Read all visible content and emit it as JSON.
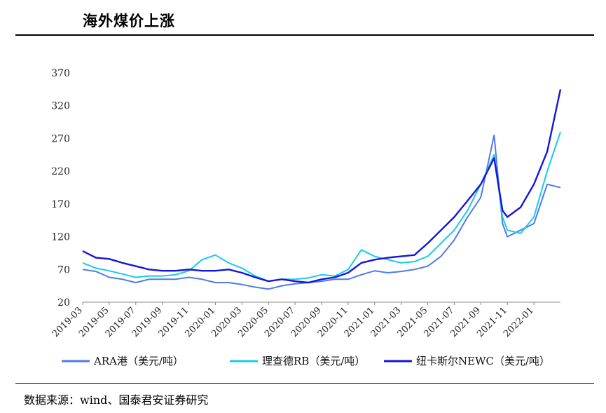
{
  "header": {
    "title": "海外煤价上涨"
  },
  "footer": {
    "source": "数据来源：wind、国泰君安证券研究"
  },
  "chart_data": {
    "type": "line",
    "ylim": [
      20,
      370
    ],
    "yticks": [
      20,
      70,
      120,
      170,
      220,
      270,
      320,
      370
    ],
    "xlabels": [
      "2019-03",
      "2019-05",
      "2019-07",
      "2019-09",
      "2019-11",
      "2020-01",
      "2020-03",
      "2020-05",
      "2020-07",
      "2020-09",
      "2020-11",
      "2021-01",
      "2021-03",
      "2021-05",
      "2021-07",
      "2021-09",
      "2021-11",
      "2022-01"
    ],
    "x_start": "2019-03",
    "x_end": "2022-03",
    "grid": false,
    "legend_position": "bottom",
    "series": [
      {
        "name": "ARA港（美元/吨）",
        "color": "#4F7BE8",
        "points": [
          [
            "2019-03",
            70
          ],
          [
            "2019-04",
            67
          ],
          [
            "2019-05",
            58
          ],
          [
            "2019-06",
            55
          ],
          [
            "2019-07",
            50
          ],
          [
            "2019-08",
            55
          ],
          [
            "2019-09",
            55
          ],
          [
            "2019-10",
            55
          ],
          [
            "2019-11",
            58
          ],
          [
            "2019-12",
            55
          ],
          [
            "2020-01",
            50
          ],
          [
            "2020-02",
            50
          ],
          [
            "2020-03",
            47
          ],
          [
            "2020-04",
            43
          ],
          [
            "2020-05",
            40
          ],
          [
            "2020-06",
            45
          ],
          [
            "2020-07",
            48
          ],
          [
            "2020-08",
            50
          ],
          [
            "2020-09",
            52
          ],
          [
            "2020-10",
            55
          ],
          [
            "2020-11",
            55
          ],
          [
            "2020-12",
            62
          ],
          [
            "2021-01",
            68
          ],
          [
            "2021-02",
            65
          ],
          [
            "2021-03",
            67
          ],
          [
            "2021-04",
            70
          ],
          [
            "2021-05",
            75
          ],
          [
            "2021-06",
            90
          ],
          [
            "2021-07",
            115
          ],
          [
            "2021-08",
            150
          ],
          [
            "2021-09",
            180
          ],
          [
            "2021-10",
            275
          ],
          [
            "2021-10-20",
            140
          ],
          [
            "2021-11",
            120
          ],
          [
            "2021-12",
            130
          ],
          [
            "2022-01",
            140
          ],
          [
            "2022-02",
            200
          ],
          [
            "2022-03",
            195
          ]
        ]
      },
      {
        "name": "理查德RB（美元/吨）",
        "color": "#18CBEB",
        "points": [
          [
            "2019-03",
            80
          ],
          [
            "2019-04",
            72
          ],
          [
            "2019-05",
            68
          ],
          [
            "2019-06",
            63
          ],
          [
            "2019-07",
            58
          ],
          [
            "2019-08",
            60
          ],
          [
            "2019-09",
            60
          ],
          [
            "2019-10",
            62
          ],
          [
            "2019-11",
            68
          ],
          [
            "2019-12",
            85
          ],
          [
            "2020-01",
            92
          ],
          [
            "2020-02",
            80
          ],
          [
            "2020-03",
            72
          ],
          [
            "2020-04",
            60
          ],
          [
            "2020-05",
            52
          ],
          [
            "2020-06",
            55
          ],
          [
            "2020-07",
            55
          ],
          [
            "2020-08",
            57
          ],
          [
            "2020-09",
            62
          ],
          [
            "2020-10",
            60
          ],
          [
            "2020-11",
            70
          ],
          [
            "2020-12",
            100
          ],
          [
            "2021-01",
            90
          ],
          [
            "2021-02",
            85
          ],
          [
            "2021-03",
            80
          ],
          [
            "2021-04",
            82
          ],
          [
            "2021-05",
            90
          ],
          [
            "2021-06",
            110
          ],
          [
            "2021-07",
            130
          ],
          [
            "2021-08",
            160
          ],
          [
            "2021-09",
            200
          ],
          [
            "2021-10",
            245
          ],
          [
            "2021-10-20",
            150
          ],
          [
            "2021-11",
            130
          ],
          [
            "2021-12",
            125
          ],
          [
            "2022-01",
            150
          ],
          [
            "2022-02",
            220
          ],
          [
            "2022-03",
            280
          ]
        ]
      },
      {
        "name": "纽卡斯尔NEWC（美元/吨）",
        "color": "#1515D8",
        "points": [
          [
            "2019-03",
            98
          ],
          [
            "2019-04",
            88
          ],
          [
            "2019-05",
            86
          ],
          [
            "2019-06",
            80
          ],
          [
            "2019-07",
            75
          ],
          [
            "2019-08",
            70
          ],
          [
            "2019-09",
            68
          ],
          [
            "2019-10",
            68
          ],
          [
            "2019-11",
            70
          ],
          [
            "2019-12",
            68
          ],
          [
            "2020-01",
            68
          ],
          [
            "2020-02",
            70
          ],
          [
            "2020-03",
            65
          ],
          [
            "2020-04",
            58
          ],
          [
            "2020-05",
            52
          ],
          [
            "2020-06",
            55
          ],
          [
            "2020-07",
            52
          ],
          [
            "2020-08",
            50
          ],
          [
            "2020-09",
            55
          ],
          [
            "2020-10",
            58
          ],
          [
            "2020-11",
            65
          ],
          [
            "2020-12",
            80
          ],
          [
            "2021-01",
            85
          ],
          [
            "2021-02",
            88
          ],
          [
            "2021-03",
            90
          ],
          [
            "2021-04",
            92
          ],
          [
            "2021-05",
            110
          ],
          [
            "2021-06",
            130
          ],
          [
            "2021-07",
            150
          ],
          [
            "2021-08",
            175
          ],
          [
            "2021-09",
            200
          ],
          [
            "2021-10",
            240
          ],
          [
            "2021-10-20",
            160
          ],
          [
            "2021-11",
            150
          ],
          [
            "2021-12",
            165
          ],
          [
            "2022-01",
            200
          ],
          [
            "2022-02",
            250
          ],
          [
            "2022-03",
            345
          ]
        ]
      }
    ]
  }
}
